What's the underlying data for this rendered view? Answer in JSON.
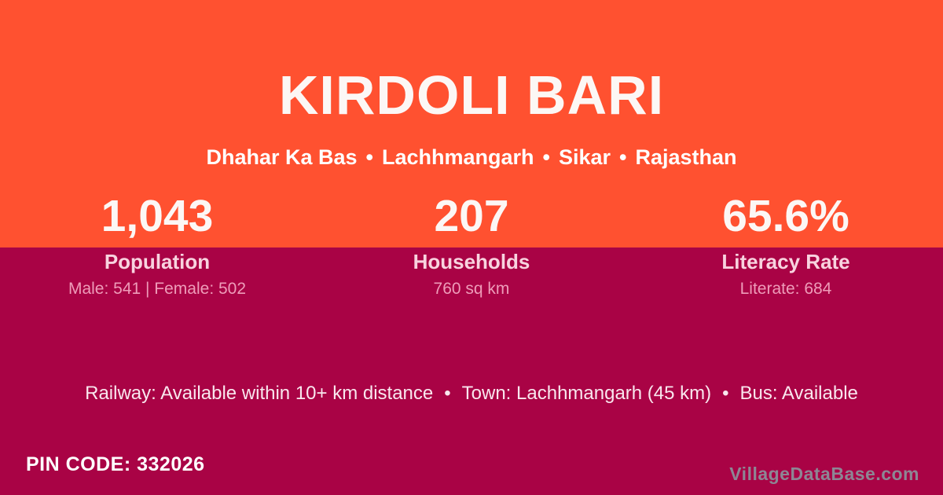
{
  "colors": {
    "top_band_bg": "#FF5130",
    "bottom_band_bg": "#A90345",
    "title_text": "#FCF7F5",
    "stat_label_text": "#F8D3DF",
    "stat_detail_text": "#EE9CB9",
    "info_text": "#F9E7EE",
    "watermark_text": "#8D8694"
  },
  "header": {
    "title": "KIRDOLI BARI",
    "location": {
      "separator": "•",
      "parts": [
        "Dhahar Ka Bas",
        "Lachhmangarh",
        "Sikar",
        "Rajasthan"
      ]
    }
  },
  "stats": [
    {
      "value": "1,043",
      "label": "Population",
      "detail": "Male: 541 | Female: 502"
    },
    {
      "value": "207",
      "label": "Households",
      "detail": "760 sq km"
    },
    {
      "value": "65.6%",
      "label": "Literacy Rate",
      "detail": "Literate: 684"
    }
  ],
  "info_line": {
    "separator": "•",
    "segments": [
      "Railway: Available within 10+ km distance",
      "Town: Lachhmangarh (45 km)",
      "Bus: Available"
    ]
  },
  "footer": {
    "pin_code": "PIN CODE: 332026",
    "watermark": "VillageDataBase.com"
  }
}
